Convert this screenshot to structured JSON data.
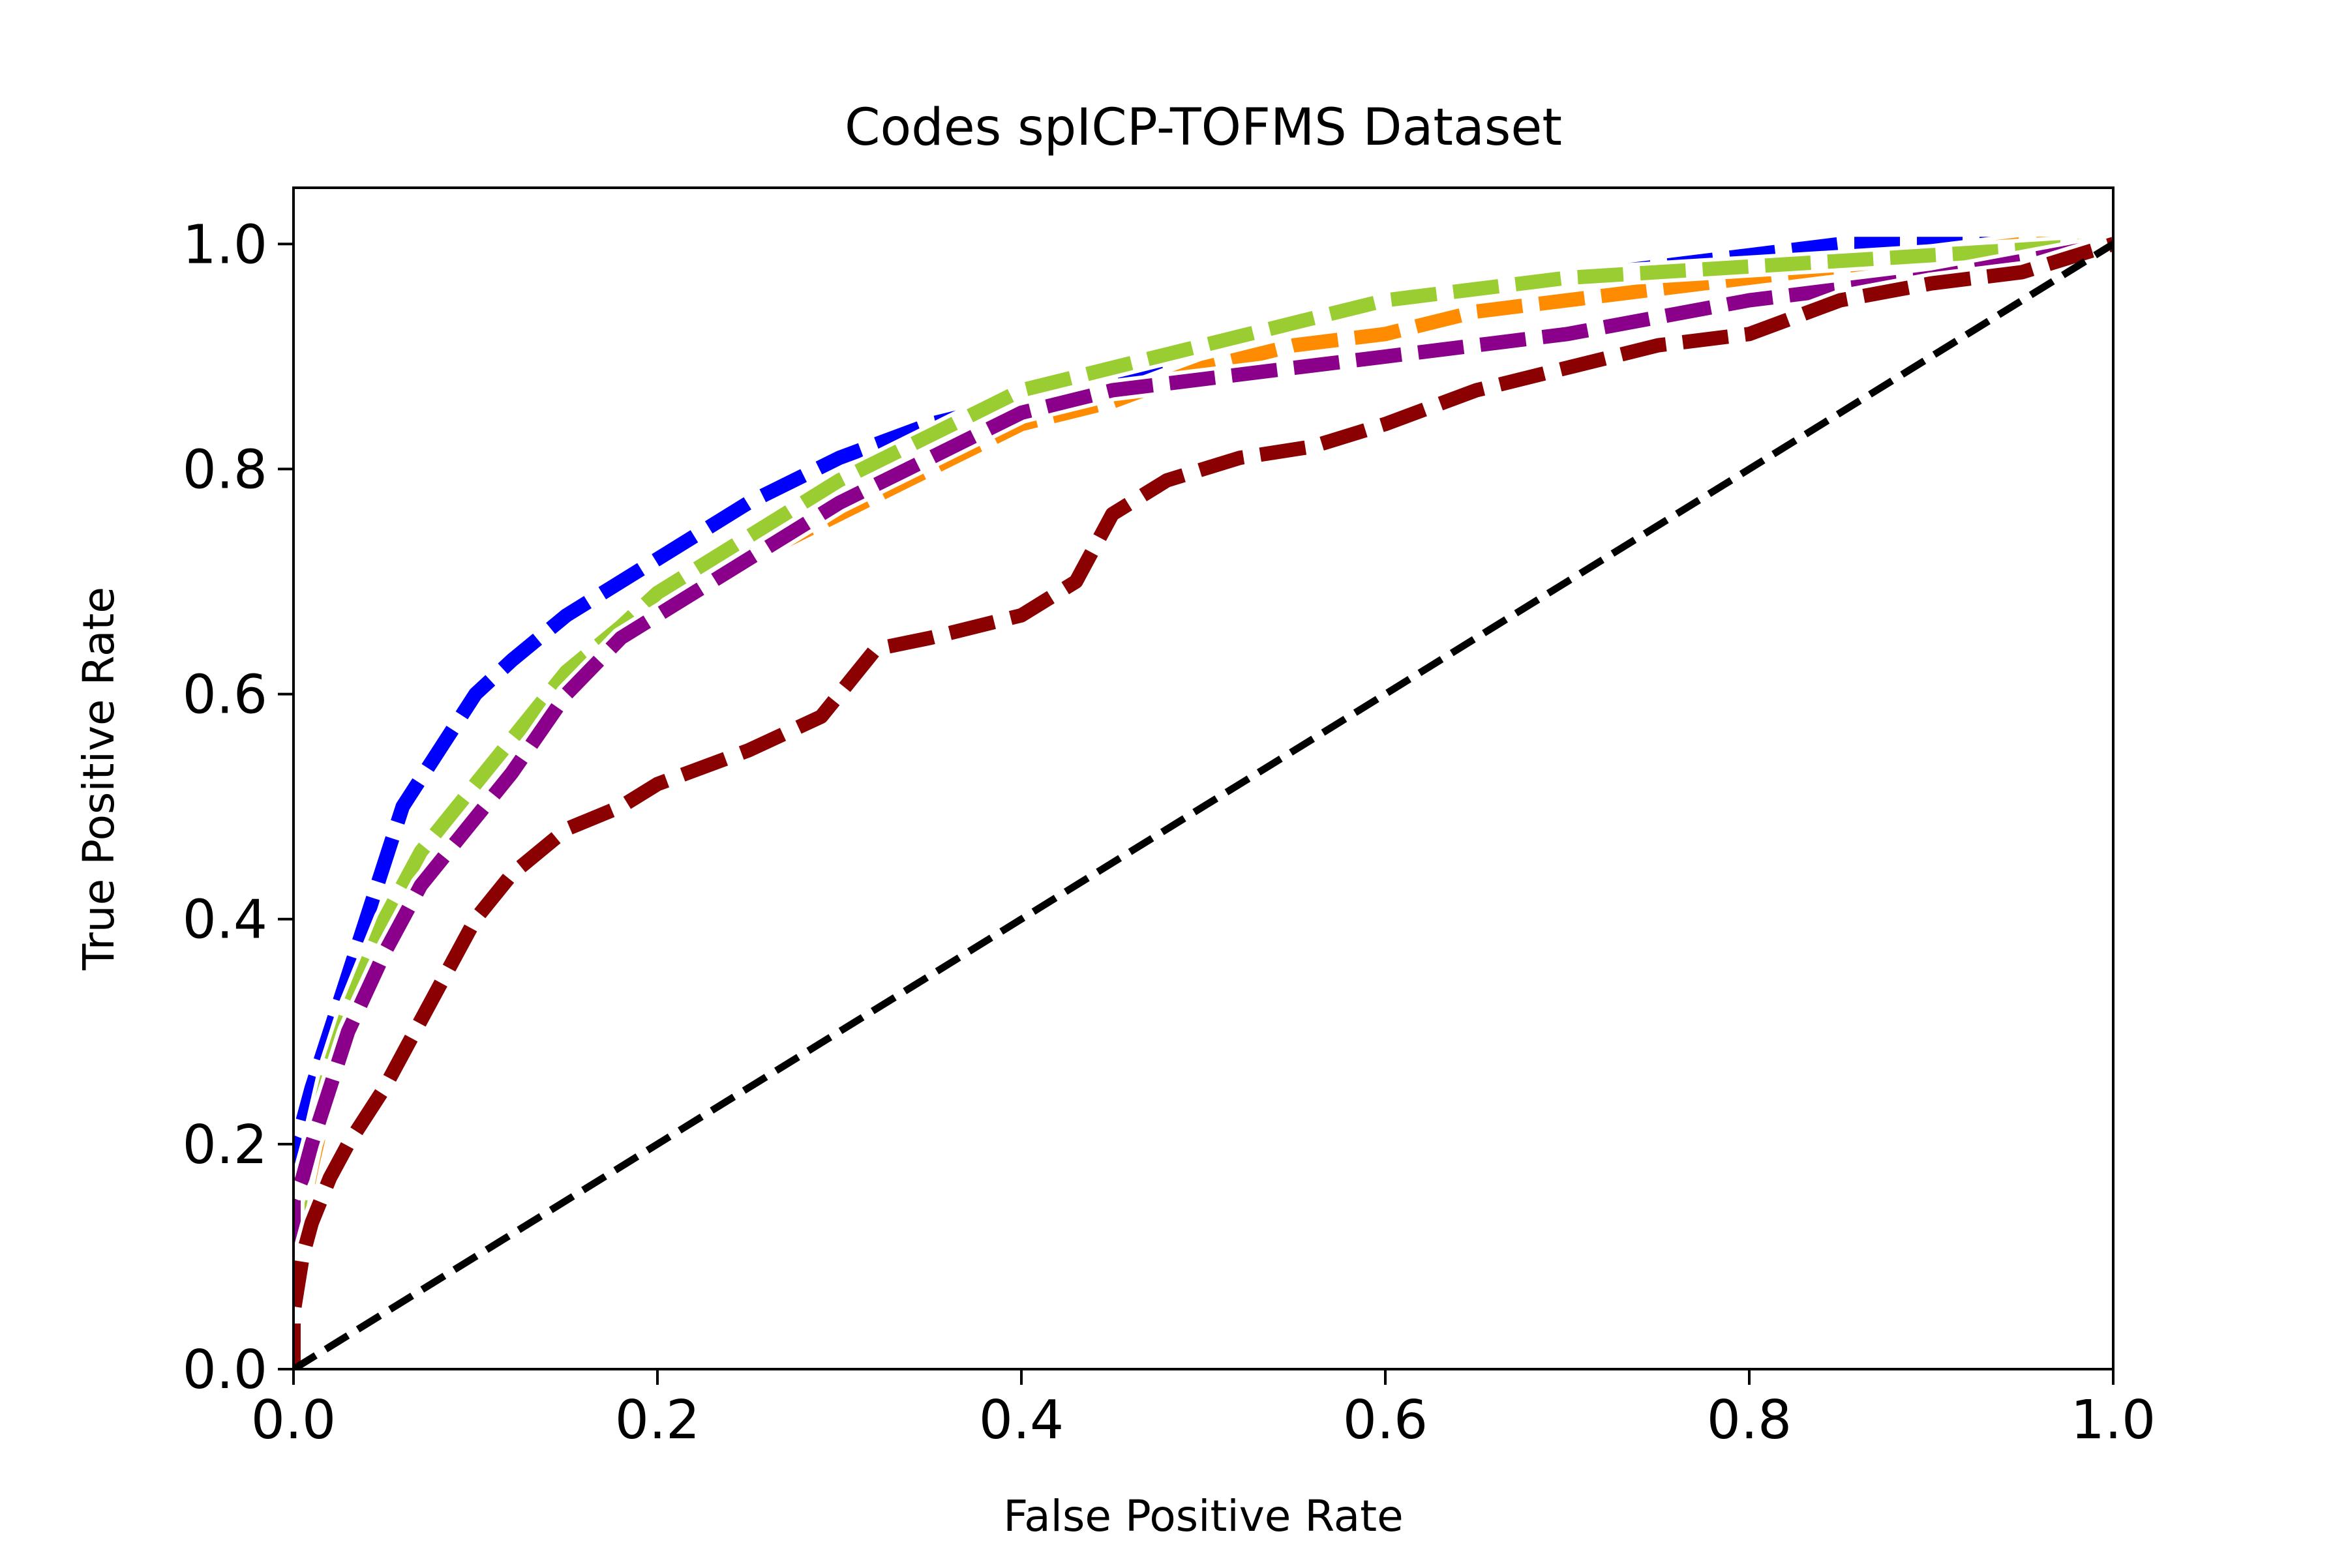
{
  "chart_data": {
    "type": "line",
    "title": "Codes spICP-TOFMS Dataset",
    "xlabel": "False Positive Rate",
    "ylabel": "True Positive Rate",
    "xlim": [
      0.0,
      1.0
    ],
    "ylim": [
      0.0,
      1.05
    ],
    "xticks": [
      "0.0",
      "0.2",
      "0.4",
      "0.6",
      "0.8",
      "1.0"
    ],
    "yticks": [
      "0.0",
      "0.2",
      "0.4",
      "0.6",
      "0.8",
      "1.0"
    ],
    "grid": false,
    "legend": "none",
    "series": [
      {
        "color": "#0000ff",
        "style": "dashed",
        "x": [
          0.0,
          0.0,
          0.005,
          0.01,
          0.02,
          0.03,
          0.04,
          0.05,
          0.06,
          0.08,
          0.1,
          0.12,
          0.15,
          0.18,
          0.2,
          0.25,
          0.3,
          0.35,
          0.4,
          0.45,
          0.5,
          0.55,
          0.6,
          0.65,
          0.7,
          0.75,
          0.8,
          0.85,
          0.9,
          0.95,
          1.0
        ],
        "y": [
          0.0,
          0.2,
          0.22,
          0.25,
          0.3,
          0.35,
          0.4,
          0.45,
          0.5,
          0.55,
          0.6,
          0.63,
          0.67,
          0.7,
          0.72,
          0.77,
          0.81,
          0.84,
          0.86,
          0.88,
          0.91,
          0.93,
          0.95,
          0.96,
          0.97,
          0.98,
          0.99,
          1.0,
          1.0,
          1.0,
          1.0
        ]
      },
      {
        "color": "#ff8c00",
        "style": "dashed",
        "x": [
          0.0,
          0.0,
          0.005,
          0.01,
          0.02,
          0.03,
          0.05,
          0.07,
          0.1,
          0.12,
          0.15,
          0.18,
          0.2,
          0.25,
          0.3,
          0.35,
          0.4,
          0.45,
          0.5,
          0.55,
          0.6,
          0.65,
          0.7,
          0.75,
          0.8,
          0.85,
          0.9,
          0.95,
          1.0
        ],
        "y": [
          0.0,
          0.1,
          0.14,
          0.18,
          0.25,
          0.3,
          0.38,
          0.44,
          0.5,
          0.54,
          0.6,
          0.65,
          0.67,
          0.72,
          0.76,
          0.8,
          0.84,
          0.86,
          0.89,
          0.91,
          0.92,
          0.94,
          0.95,
          0.96,
          0.97,
          0.98,
          0.99,
          1.0,
          1.0
        ]
      },
      {
        "color": "#9acd32",
        "style": "dashed",
        "x": [
          0.0,
          0.0,
          0.005,
          0.01,
          0.02,
          0.03,
          0.05,
          0.07,
          0.1,
          0.12,
          0.15,
          0.18,
          0.2,
          0.25,
          0.3,
          0.35,
          0.4,
          0.45,
          0.5,
          0.55,
          0.6,
          0.65,
          0.7,
          0.75,
          0.8,
          0.85,
          0.9,
          0.95,
          1.0
        ],
        "y": [
          0.0,
          0.12,
          0.16,
          0.2,
          0.27,
          0.32,
          0.4,
          0.46,
          0.52,
          0.56,
          0.62,
          0.66,
          0.69,
          0.74,
          0.79,
          0.83,
          0.87,
          0.89,
          0.91,
          0.93,
          0.95,
          0.96,
          0.97,
          0.975,
          0.98,
          0.985,
          0.99,
          0.995,
          1.0
        ]
      },
      {
        "color": "#8b008b",
        "style": "dashed",
        "x": [
          0.0,
          0.0,
          0.005,
          0.01,
          0.02,
          0.03,
          0.05,
          0.07,
          0.1,
          0.12,
          0.15,
          0.18,
          0.2,
          0.25,
          0.3,
          0.35,
          0.4,
          0.45,
          0.5,
          0.55,
          0.6,
          0.65,
          0.7,
          0.75,
          0.8,
          0.85,
          0.9,
          0.95,
          1.0
        ],
        "y": [
          0.0,
          0.15,
          0.17,
          0.2,
          0.25,
          0.3,
          0.37,
          0.43,
          0.49,
          0.53,
          0.6,
          0.65,
          0.67,
          0.72,
          0.77,
          0.81,
          0.85,
          0.87,
          0.88,
          0.89,
          0.9,
          0.91,
          0.92,
          0.935,
          0.95,
          0.96,
          0.97,
          0.985,
          1.0
        ]
      },
      {
        "color": "#8b0000",
        "style": "dashed",
        "x": [
          0.0,
          0.0,
          0.005,
          0.01,
          0.02,
          0.03,
          0.05,
          0.07,
          0.09,
          0.1,
          0.12,
          0.15,
          0.18,
          0.2,
          0.25,
          0.29,
          0.32,
          0.35,
          0.4,
          0.43,
          0.45,
          0.48,
          0.52,
          0.56,
          0.6,
          0.65,
          0.7,
          0.75,
          0.8,
          0.85,
          0.9,
          0.95,
          1.0
        ],
        "y": [
          0.0,
          0.05,
          0.1,
          0.13,
          0.17,
          0.2,
          0.25,
          0.31,
          0.37,
          0.4,
          0.44,
          0.48,
          0.5,
          0.52,
          0.55,
          0.58,
          0.64,
          0.65,
          0.67,
          0.7,
          0.76,
          0.79,
          0.81,
          0.82,
          0.84,
          0.87,
          0.89,
          0.91,
          0.92,
          0.95,
          0.965,
          0.975,
          1.0
        ]
      },
      {
        "color": "#000000",
        "style": "dashed",
        "x": [
          0.0,
          1.0
        ],
        "y": [
          0.0,
          1.0
        ]
      }
    ]
  }
}
